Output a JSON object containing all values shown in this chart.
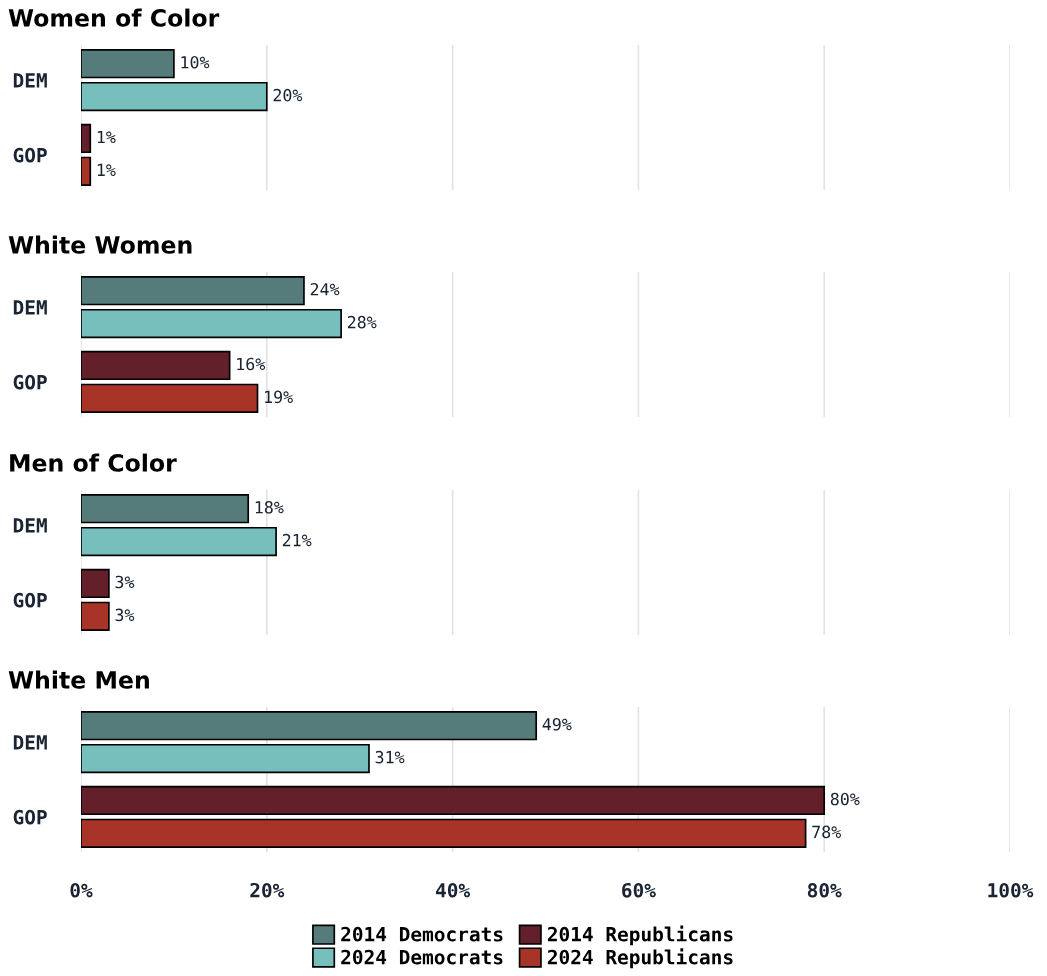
{
  "chart_data": [
    {
      "type": "bar",
      "orientation": "horizontal",
      "title": "Women of Color",
      "categories": [
        "DEM",
        "GOP"
      ],
      "xlim": [
        0,
        100
      ],
      "xticks": [
        {
          "value": 0,
          "label": null
        },
        {
          "value": 20,
          "label": null
        },
        {
          "value": 40,
          "label": null
        },
        {
          "value": 60,
          "label": null
        },
        {
          "value": 80,
          "label": null
        },
        {
          "value": 100,
          "label": null
        }
      ],
      "grid": "x",
      "tick_labels": "y",
      "legend": "bottom",
      "series": [
        {
          "name": "2014 Democrats",
          "color": "#557b7a",
          "values": [
            10,
            null
          ],
          "value_labels": [
            "10%",
            null
          ]
        },
        {
          "name": "2024 Democrats",
          "color": "#76bfbc",
          "values": [
            20,
            null
          ],
          "value_labels": [
            "20%",
            null
          ]
        },
        {
          "name": "2014 Republicans",
          "color": "#63202a",
          "values": [
            null,
            1
          ],
          "value_labels": [
            null,
            "1%"
          ]
        },
        {
          "name": "2024 Republicans",
          "color": "#a83428",
          "values": [
            null,
            1
          ],
          "value_labels": [
            null,
            "1%"
          ]
        }
      ]
    },
    {
      "type": "bar",
      "orientation": "horizontal",
      "title": "White Women",
      "categories": [
        "DEM",
        "GOP"
      ],
      "xlim": [
        0,
        100
      ],
      "xticks": [
        {
          "value": 0,
          "label": null
        },
        {
          "value": 20,
          "label": null
        },
        {
          "value": 40,
          "label": null
        },
        {
          "value": 60,
          "label": null
        },
        {
          "value": 80,
          "label": null
        },
        {
          "value": 100,
          "label": null
        }
      ],
      "grid": "x",
      "tick_labels": "y",
      "series": [
        {
          "color": "#557b7a",
          "values": [
            24,
            null
          ],
          "value_labels": [
            "24%",
            null
          ]
        },
        {
          "color": "#76bfbc",
          "values": [
            28,
            null
          ],
          "value_labels": [
            "28%",
            null
          ]
        },
        {
          "color": "#63202a",
          "values": [
            null,
            16
          ],
          "value_labels": [
            null,
            "16%"
          ]
        },
        {
          "color": "#a83428",
          "values": [
            null,
            19
          ],
          "value_labels": [
            null,
            "19%"
          ]
        }
      ]
    },
    {
      "type": "bar",
      "orientation": "horizontal",
      "title": "Men of Color",
      "categories": [
        "DEM",
        "GOP"
      ],
      "xlim": [
        0,
        100
      ],
      "xticks": [
        {
          "value": 0,
          "label": null
        },
        {
          "value": 20,
          "label": null
        },
        {
          "value": 40,
          "label": null
        },
        {
          "value": 60,
          "label": null
        },
        {
          "value": 80,
          "label": null
        },
        {
          "value": 100,
          "label": null
        }
      ],
      "grid": "x",
      "tick_labels": "y",
      "series": [
        {
          "color": "#557b7a",
          "values": [
            18,
            null
          ],
          "value_labels": [
            "18%",
            null
          ]
        },
        {
          "color": "#76bfbc",
          "values": [
            21,
            null
          ],
          "value_labels": [
            "21%",
            null
          ]
        },
        {
          "color": "#63202a",
          "values": [
            null,
            3
          ],
          "value_labels": [
            null,
            "3%"
          ]
        },
        {
          "color": "#a83428",
          "values": [
            null,
            3
          ],
          "value_labels": [
            null,
            "3%"
          ]
        }
      ]
    },
    {
      "type": "bar",
      "orientation": "horizontal",
      "title": "White Men",
      "categories": [
        "DEM",
        "GOP"
      ],
      "xlim": [
        0,
        100
      ],
      "xticks": [
        {
          "value": 0,
          "label": "0%"
        },
        {
          "value": 20,
          "label": "20%"
        },
        {
          "value": 40,
          "label": "40%"
        },
        {
          "value": 60,
          "label": "60%"
        },
        {
          "value": 80,
          "label": "80%"
        },
        {
          "value": 100,
          "label": "100%"
        }
      ],
      "grid": "x",
      "series": [
        {
          "color": "#557b7a",
          "values": [
            49,
            null
          ],
          "value_labels": [
            "49%",
            null
          ]
        },
        {
          "color": "#76bfbc",
          "values": [
            31,
            null
          ],
          "value_labels": [
            "31%",
            null
          ]
        },
        {
          "color": "#63202a",
          "values": [
            null,
            80
          ],
          "value_labels": [
            null,
            "80%"
          ]
        },
        {
          "color": "#a83428",
          "values": [
            null,
            78
          ],
          "value_labels": [
            null,
            "78%"
          ]
        }
      ]
    }
  ]
}
